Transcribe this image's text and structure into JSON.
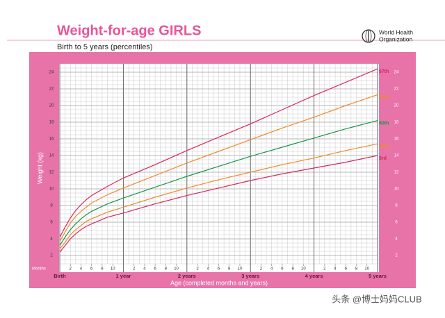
{
  "chart_data": {
    "type": "line",
    "title": "Weight-for-age GIRLS",
    "subtitle": "Birth to 5 years (percentiles)",
    "xlabel": "Age (completed months and years)",
    "ylabel": "Weight (kg)",
    "x_unit_label": "Months",
    "x": [
      0,
      1,
      2,
      3,
      4,
      5,
      6,
      9,
      12,
      18,
      24,
      30,
      36,
      42,
      48,
      54,
      60
    ],
    "series": [
      {
        "name": "97th",
        "color": "#d9265c",
        "values": [
          4.2,
          5.4,
          6.5,
          7.4,
          8.1,
          8.7,
          9.2,
          10.3,
          11.3,
          12.9,
          14.6,
          16.2,
          17.8,
          19.5,
          21.2,
          22.8,
          24.4
        ]
      },
      {
        "name": "85th",
        "color": "#f0892c",
        "values": [
          3.7,
          4.8,
          5.9,
          6.7,
          7.3,
          7.8,
          8.3,
          9.3,
          10.1,
          11.6,
          13.1,
          14.5,
          15.9,
          17.3,
          18.6,
          20.0,
          21.3
        ]
      },
      {
        "name": "50th",
        "color": "#1a9448",
        "values": [
          3.2,
          4.2,
          5.1,
          5.8,
          6.4,
          6.9,
          7.3,
          8.2,
          8.9,
          10.2,
          11.5,
          12.7,
          13.9,
          15.0,
          16.1,
          17.2,
          18.2
        ]
      },
      {
        "name": "15th",
        "color": "#f0892c",
        "values": [
          2.8,
          3.6,
          4.5,
          5.1,
          5.6,
          6.1,
          6.4,
          7.2,
          7.8,
          9.0,
          10.1,
          11.1,
          12.0,
          12.9,
          13.7,
          14.6,
          15.4
        ]
      },
      {
        "name": "3rd",
        "color": "#d9265c",
        "values": [
          2.4,
          3.2,
          4.0,
          4.6,
          5.1,
          5.5,
          5.8,
          6.6,
          7.1,
          8.2,
          9.2,
          10.1,
          11.0,
          11.8,
          12.5,
          13.2,
          14.0
        ]
      }
    ],
    "xlim": [
      0,
      60
    ],
    "ylim": [
      1,
      25
    ],
    "yticks": [
      2,
      4,
      6,
      8,
      10,
      12,
      14,
      16,
      18,
      20,
      22,
      24
    ],
    "xticks": [
      2,
      4,
      6,
      8,
      10,
      {
        "value": 14,
        "label": "2"
      },
      {
        "value": 16,
        "label": "4"
      },
      {
        "value": 18,
        "label": "6"
      },
      {
        "value": 20,
        "label": "8"
      },
      {
        "value": 22,
        "label": "10"
      },
      {
        "value": 26,
        "label": "2"
      },
      {
        "value": 28,
        "label": "4"
      },
      {
        "value": 30,
        "label": "6"
      },
      {
        "value": 32,
        "label": "8"
      },
      {
        "value": 34,
        "label": "10"
      },
      {
        "value": 38,
        "label": "2"
      },
      {
        "value": 40,
        "label": "4"
      },
      {
        "value": 42,
        "label": "6"
      },
      {
        "value": 44,
        "label": "8"
      },
      {
        "value": 46,
        "label": "10"
      },
      {
        "value": 50,
        "label": "2"
      },
      {
        "value": 52,
        "label": "4"
      },
      {
        "value": 54,
        "label": "6"
      },
      {
        "value": 56,
        "label": "8"
      },
      {
        "value": 58,
        "label": "10"
      }
    ],
    "year_ticks": [
      {
        "value": 0,
        "label": "Birth"
      },
      {
        "value": 12,
        "label": "1 year"
      },
      {
        "value": 24,
        "label": "2 years"
      },
      {
        "value": 36,
        "label": "3 years"
      },
      {
        "value": 48,
        "label": "4 years"
      },
      {
        "value": 60,
        "label": "5 years"
      }
    ],
    "grid": true
  },
  "organization": [
    "World Health",
    "Organization"
  ],
  "watermark": "头条 @博士妈妈CLUB"
}
